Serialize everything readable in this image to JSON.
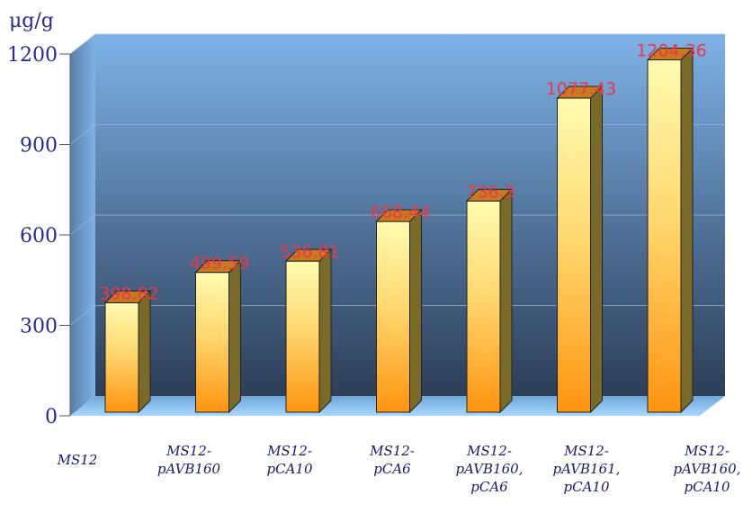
{
  "chart_data": {
    "type": "bar",
    "ylabel": "μg/g",
    "ylim": [
      0,
      1200
    ],
    "yticks": [
      0,
      300,
      600,
      900,
      1200
    ],
    "categories": [
      [
        "MS12"
      ],
      [
        "MS12-",
        "pAVB160"
      ],
      [
        "MS12-",
        "pCA10"
      ],
      [
        "MS12-",
        "pCA6"
      ],
      [
        "MS12-",
        "pAVB160,",
        "pCA6"
      ],
      [
        "MS12-",
        "pAVB161,",
        "pCA10"
      ],
      [
        "MS12-",
        "pAVB160,",
        "pCA10"
      ]
    ],
    "values": [
      398.82,
      499.59,
      536.81,
      668.44,
      736.3,
      1077.43,
      1204.36
    ],
    "data_labels": [
      "398.82",
      "499.59",
      "536.81",
      "668.44",
      "736.3",
      "1077.43",
      "1204.36"
    ],
    "grid": true,
    "legend": "none",
    "colors": {
      "bar_top": "#fff8a0",
      "bar_bottom": "#ff9410",
      "bar_side": "#7a6a2a",
      "bar_cap": "#c87a20",
      "wall_top": "#7fb2e8",
      "wall_bottom": "#2d3e58",
      "floor": "#90c8f4"
    }
  }
}
